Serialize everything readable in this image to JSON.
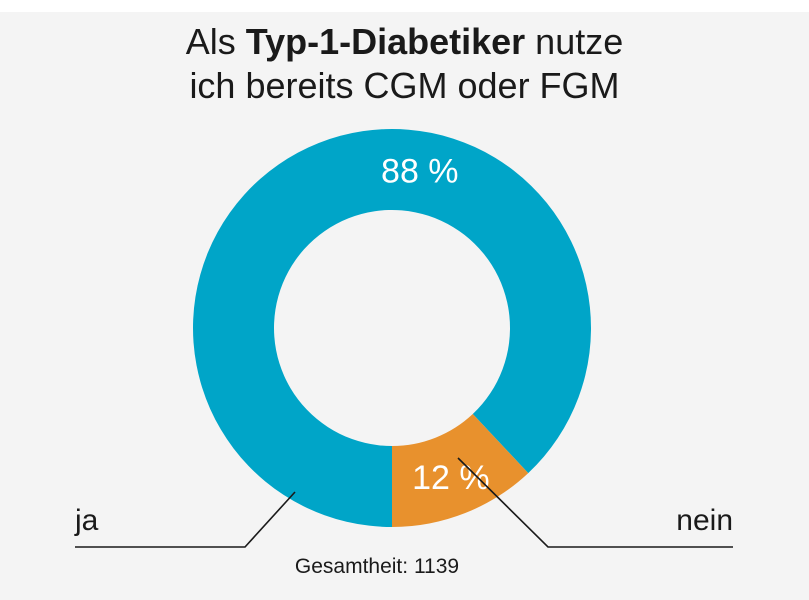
{
  "chart_data": {
    "type": "pie",
    "title_prefix": "Als ",
    "title_highlight": "Typ-1-Diabetiker",
    "title_suffix": " nutze",
    "title_line2": "ich bereits CGM oder FGM",
    "slices": [
      {
        "label": "nein",
        "value": 88,
        "value_label": "88 %",
        "color": "#00a5c8"
      },
      {
        "label": "ja",
        "value": 12,
        "value_label": "12 %",
        "color": "#e8912d"
      }
    ],
    "total_label": "Gesamtheit: 1139",
    "donut": true
  }
}
